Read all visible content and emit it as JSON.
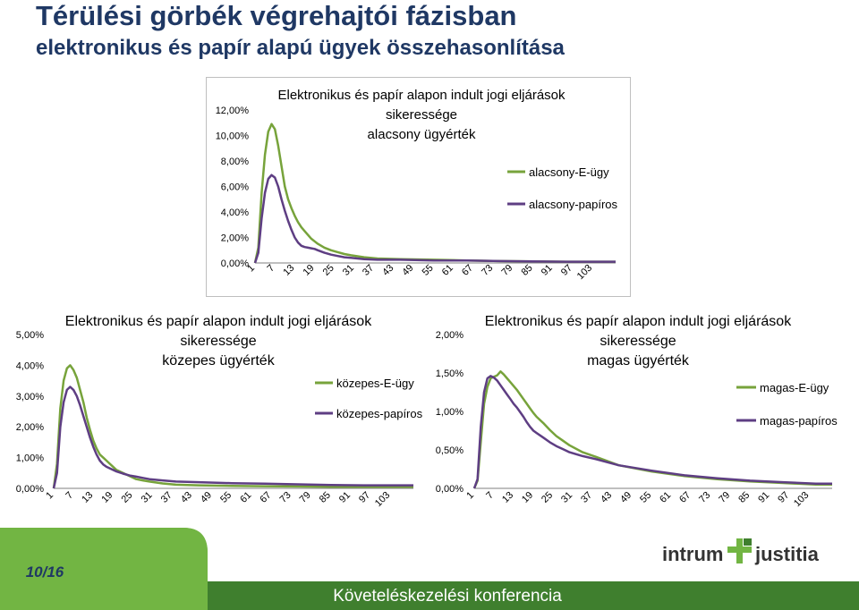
{
  "page": {
    "title": "Térülési görbék végrehajtói fázisban",
    "subtitle": "elektronikus és papír alapú ügyek összehasonlítása",
    "page_number": "10/16",
    "conference": "Követeléskezelési konferencia",
    "logo_text_left": "intrum",
    "logo_text_right": "justitia"
  },
  "colors": {
    "e_ugy": "#77a33b",
    "papiros": "#5e3e83",
    "footer_green": "#72b543",
    "footer_dark": "#3f7f2e",
    "title": "#1f3864",
    "logo": "#333333"
  },
  "chart_data": [
    {
      "type": "line",
      "title_lines": [
        "Elektronikus és papír alapon indult jogi eljárások",
        "sikeressége",
        "alacsony ügyérték"
      ],
      "x": [
        1,
        2,
        3,
        4,
        5,
        6,
        7,
        8,
        9,
        10,
        11,
        12,
        13,
        14,
        15,
        16,
        17,
        18,
        19,
        20,
        22,
        24,
        26,
        28,
        30,
        34,
        38,
        45,
        55,
        65,
        75,
        85,
        95,
        105,
        110
      ],
      "xticks": [
        "1",
        "7",
        "13",
        "19",
        "25",
        "31",
        "37",
        "43",
        "49",
        "55",
        "61",
        "67",
        "73",
        "79",
        "85",
        "91",
        "97",
        "103"
      ],
      "ylim": [
        0,
        12
      ],
      "yticks": [
        "0,00%",
        "2,00%",
        "4,00%",
        "6,00%",
        "8,00%",
        "10,00%",
        "12,00%"
      ],
      "legend_position": "right",
      "series": [
        {
          "name": "alacsony-E-ügy",
          "values": [
            0,
            1.2,
            5.5,
            8.5,
            10.3,
            10.9,
            10.5,
            9.2,
            7.6,
            6.0,
            5.0,
            4.3,
            3.7,
            3.2,
            2.8,
            2.5,
            2.2,
            1.9,
            1.7,
            1.5,
            1.2,
            1.0,
            0.85,
            0.7,
            0.6,
            0.45,
            0.35,
            0.3,
            0.25,
            0.2,
            0.15,
            0.12,
            0.1,
            0.1,
            0.1
          ]
        },
        {
          "name": "alacsony-papíros",
          "values": [
            0,
            0.8,
            3.5,
            5.5,
            6.6,
            6.9,
            6.7,
            6.0,
            5.0,
            4.1,
            3.3,
            2.6,
            2.0,
            1.6,
            1.35,
            1.25,
            1.2,
            1.15,
            1.1,
            1.0,
            0.8,
            0.65,
            0.55,
            0.45,
            0.4,
            0.3,
            0.25,
            0.25,
            0.2,
            0.2,
            0.15,
            0.12,
            0.1,
            0.1,
            0.1
          ]
        }
      ]
    },
    {
      "type": "line",
      "title_lines": [
        "Elektronikus és papír alapon indult jogi eljárások",
        "sikeressége",
        "közepes ügyérték"
      ],
      "x": [
        1,
        2,
        3,
        4,
        5,
        6,
        7,
        8,
        9,
        10,
        11,
        12,
        13,
        14,
        15,
        16,
        17,
        18,
        19,
        20,
        22,
        24,
        26,
        28,
        30,
        34,
        38,
        45,
        55,
        65,
        75,
        85,
        95,
        105,
        110
      ],
      "xticks": [
        "1",
        "7",
        "13",
        "19",
        "25",
        "31",
        "37",
        "43",
        "49",
        "55",
        "61",
        "67",
        "73",
        "79",
        "85",
        "91",
        "97",
        "103"
      ],
      "ylim": [
        0,
        5
      ],
      "yticks": [
        "0,00%",
        "1,00%",
        "2,00%",
        "3,00%",
        "4,00%",
        "5,00%"
      ],
      "legend_position": "right",
      "series": [
        {
          "name": "közepes-E-ügy",
          "values": [
            0,
            0.8,
            2.6,
            3.5,
            3.9,
            4.0,
            3.85,
            3.6,
            3.2,
            2.8,
            2.3,
            1.9,
            1.55,
            1.3,
            1.1,
            1.0,
            0.9,
            0.8,
            0.7,
            0.6,
            0.5,
            0.4,
            0.3,
            0.26,
            0.22,
            0.16,
            0.12,
            0.1,
            0.08,
            0.07,
            0.06,
            0.05,
            0.05,
            0.05,
            0.05
          ]
        },
        {
          "name": "közepes-papíros",
          "values": [
            0,
            0.5,
            2.0,
            2.8,
            3.2,
            3.3,
            3.2,
            3.0,
            2.7,
            2.35,
            2.0,
            1.65,
            1.35,
            1.1,
            0.9,
            0.78,
            0.7,
            0.65,
            0.6,
            0.55,
            0.48,
            0.42,
            0.38,
            0.34,
            0.3,
            0.26,
            0.22,
            0.2,
            0.17,
            0.15,
            0.13,
            0.11,
            0.1,
            0.1,
            0.1
          ]
        }
      ]
    },
    {
      "type": "line",
      "title_lines": [
        "Elektronikus és papír alapon indult jogi eljárások",
        "sikeressége",
        "magas ügyérték"
      ],
      "x": [
        1,
        2,
        3,
        4,
        5,
        6,
        7,
        8,
        9,
        10,
        11,
        12,
        13,
        14,
        15,
        16,
        17,
        18,
        19,
        20,
        22,
        24,
        26,
        28,
        30,
        34,
        38,
        45,
        55,
        65,
        75,
        85,
        95,
        105,
        110
      ],
      "xticks": [
        "1",
        "7",
        "13",
        "19",
        "25",
        "31",
        "37",
        "43",
        "49",
        "55",
        "61",
        "67",
        "73",
        "79",
        "85",
        "91",
        "97",
        "103"
      ],
      "ylim": [
        0,
        2
      ],
      "yticks": [
        "0,00%",
        "0,50%",
        "1,00%",
        "1,50%",
        "2,00%"
      ],
      "legend_position": "right",
      "series": [
        {
          "name": "magas-E-ügy",
          "values": [
            0,
            0.1,
            0.6,
            1.1,
            1.32,
            1.43,
            1.45,
            1.47,
            1.52,
            1.48,
            1.43,
            1.38,
            1.33,
            1.28,
            1.22,
            1.16,
            1.1,
            1.04,
            0.98,
            0.93,
            0.85,
            0.76,
            0.68,
            0.62,
            0.56,
            0.47,
            0.41,
            0.3,
            0.22,
            0.16,
            0.12,
            0.09,
            0.07,
            0.05,
            0.05
          ]
        },
        {
          "name": "magas-papíros",
          "values": [
            0,
            0.12,
            0.8,
            1.25,
            1.43,
            1.46,
            1.44,
            1.4,
            1.34,
            1.28,
            1.22,
            1.16,
            1.1,
            1.05,
            0.99,
            0.93,
            0.86,
            0.8,
            0.75,
            0.72,
            0.66,
            0.6,
            0.55,
            0.51,
            0.47,
            0.42,
            0.38,
            0.3,
            0.23,
            0.17,
            0.13,
            0.1,
            0.08,
            0.06,
            0.06
          ]
        }
      ]
    }
  ]
}
